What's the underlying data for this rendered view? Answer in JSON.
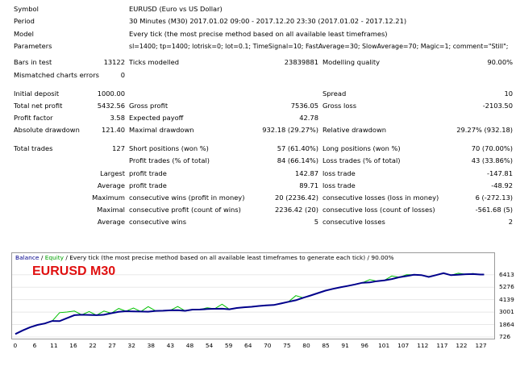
{
  "report": {
    "symbol_label": "Symbol",
    "symbol_value": "EURUSD (Euro vs US Dollar)",
    "period_label": "Period",
    "period_value": "30 Minutes (M30) 2017.01.02 09:00 - 2017.12.20 23:30 (2017.01.02 - 2017.12.21)",
    "model_label": "Model",
    "model_value": "Every tick (the most precise method based on all available least timeframes)",
    "parameters_label": "Parameters",
    "parameters_value": "sl=1400; tp=1400; lotrisk=0; lot=0.1; TimeSignal=10; FastAverage=30; SlowAverage=70; Magic=1; comment=\"Still\";",
    "bars_label": "Bars in test",
    "bars_value": "13122",
    "ticks_label": "Ticks modelled",
    "ticks_value": "23839881",
    "quality_label": "Modelling quality",
    "quality_value": "90.00%",
    "mismatch_label": "Mismatched charts errors",
    "mismatch_value": "0",
    "deposit_label": "Initial deposit",
    "deposit_value": "1000.00",
    "spread_label": "Spread",
    "spread_value": "10",
    "netprofit_label": "Total net profit",
    "netprofit_value": "5432.56",
    "grossprofit_label": "Gross profit",
    "grossprofit_value": "7536.05",
    "grossloss_label": "Gross loss",
    "grossloss_value": "-2103.50",
    "pf_label": "Profit factor",
    "pf_value": "3.58",
    "expected_label": "Expected payoff",
    "expected_value": "42.78",
    "absdd_label": "Absolute drawdown",
    "absdd_value": "121.40",
    "maxdd_label": "Maximal drawdown",
    "maxdd_value": "932.18 (29.27%)",
    "reldd_label": "Relative drawdown",
    "reldd_value": "29.27% (932.18)",
    "trades_label": "Total trades",
    "trades_value": "127",
    "short_label": "Short positions (won %)",
    "short_value": "57 (61.40%)",
    "long_label": "Long positions (won %)",
    "long_value": "70 (70.00%)",
    "profittrades_label": "Profit trades (% of total)",
    "profittrades_value": "84 (66.14%)",
    "losstrades_label": "Loss trades (% of total)",
    "losstrades_value": "43 (33.86%)",
    "largest_label": "Largest",
    "largest_profit_label": "profit trade",
    "largest_profit_value": "142.87",
    "largest_loss_label": "loss trade",
    "largest_loss_value": "-147.81",
    "average_label": "Average",
    "average_profit_label": "profit trade",
    "average_profit_value": "89.71",
    "average_loss_label": "loss trade",
    "average_loss_value": "-48.92",
    "maximum_label": "Maximum",
    "maxwins_label": "consecutive wins (profit in money)",
    "maxwins_value": "20 (2236.42)",
    "maxlosses_label": "consecutive losses (loss in money)",
    "maxlosses_value": "6 (-272.13)",
    "maximal_label": "Maximal",
    "maxprofit_label": "consecutive profit (count of wins)",
    "maxprofit_value": "2236.42 (20)",
    "maxloss_label": "consecutive loss (count of losses)",
    "maxloss_value": "-561.68 (5)",
    "average2_label": "Average",
    "avgwins_label": "consecutive wins",
    "avgwins_value": "5",
    "avglosses_label": "consecutive losses",
    "avglosses_value": "2"
  },
  "chart": {
    "legend_balance": "Balance",
    "legend_sep": " / ",
    "legend_equity": "Equity",
    "legend_rest": " / Every tick (the most precise method based on all available least timeframes to generate each tick) / 90.00%",
    "overlay_label": "EURUSD M30",
    "balance_color": "#00008b",
    "equity_color": "#00c000",
    "overlay_color": "#e01010"
  },
  "chart_data": {
    "type": "line",
    "ylim": [
      726,
      7500
    ],
    "y_ticks": [
      "6413",
      "5276",
      "4139",
      "3001",
      "1864",
      "726"
    ],
    "y_tick_values": [
      6413,
      5276,
      4139,
      3001,
      1864,
      726
    ],
    "x_ticks": [
      "0",
      "6",
      "11",
      "16",
      "22",
      "27",
      "32",
      "38",
      "43",
      "48",
      "54",
      "59",
      "64",
      "70",
      "75",
      "80",
      "85",
      "91",
      "96",
      "101",
      "107",
      "112",
      "117",
      "122",
      "127"
    ],
    "xlim": [
      0,
      128
    ],
    "series": [
      {
        "name": "Balance",
        "x": [
          0,
          2,
          4,
          6,
          8,
          10,
          12,
          14,
          16,
          18,
          20,
          22,
          24,
          26,
          28,
          30,
          32,
          34,
          36,
          38,
          40,
          42,
          44,
          46,
          48,
          50,
          52,
          54,
          56,
          58,
          60,
          62,
          64,
          66,
          68,
          70,
          72,
          74,
          76,
          78,
          80,
          82,
          84,
          86,
          88,
          90,
          92,
          94,
          96,
          98,
          100,
          102,
          104,
          106,
          108,
          110,
          112,
          114,
          116,
          118,
          120,
          122,
          124,
          126,
          127
        ],
        "values": [
          1000,
          1330,
          1620,
          1830,
          1960,
          2190,
          2180,
          2450,
          2720,
          2760,
          2740,
          2720,
          2760,
          2900,
          3020,
          3080,
          3060,
          3050,
          3040,
          3110,
          3130,
          3160,
          3180,
          3120,
          3230,
          3240,
          3280,
          3300,
          3310,
          3260,
          3380,
          3440,
          3490,
          3560,
          3610,
          3650,
          3790,
          3940,
          4080,
          4310,
          4520,
          4740,
          4960,
          5120,
          5260,
          5390,
          5530,
          5680,
          5710,
          5830,
          5900,
          6020,
          6180,
          6290,
          6410,
          6380,
          6210,
          6380,
          6560,
          6370,
          6410,
          6460,
          6480,
          6430,
          6430
        ]
      },
      {
        "name": "Equity",
        "x": [
          0,
          2,
          4,
          6,
          8,
          10,
          12,
          14,
          16,
          18,
          20,
          22,
          24,
          26,
          28,
          30,
          32,
          34,
          36,
          38,
          40,
          42,
          44,
          46,
          48,
          50,
          52,
          54,
          56,
          58,
          60,
          62,
          64,
          66,
          68,
          70,
          72,
          74,
          76,
          78,
          80,
          82,
          84,
          86,
          88,
          90,
          92,
          94,
          96,
          98,
          100,
          102,
          104,
          106,
          108,
          110,
          112,
          114,
          116,
          118,
          120,
          122,
          124,
          126,
          127
        ],
        "values": [
          1000,
          1330,
          1620,
          1830,
          1960,
          2190,
          2950,
          3010,
          3100,
          2760,
          3050,
          2720,
          3100,
          2900,
          3330,
          3080,
          3370,
          3050,
          3500,
          3110,
          3130,
          3160,
          3510,
          3120,
          3230,
          3240,
          3400,
          3300,
          3720,
          3260,
          3380,
          3440,
          3490,
          3560,
          3610,
          3650,
          3790,
          3940,
          4500,
          4310,
          4520,
          4740,
          4960,
          5120,
          5260,
          5390,
          5530,
          5680,
          5960,
          5830,
          5900,
          6300,
          6180,
          6420,
          6410,
          6380,
          6250,
          6380,
          6560,
          6370,
          6550,
          6460,
          6520,
          6430,
          6430
        ]
      }
    ]
  }
}
